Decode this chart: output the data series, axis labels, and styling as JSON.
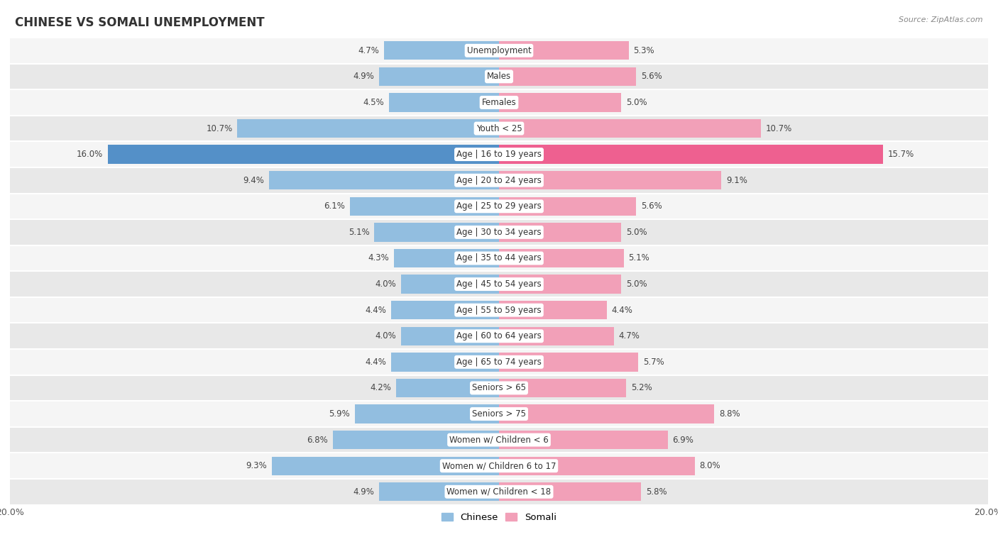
{
  "title": "CHINESE VS SOMALI UNEMPLOYMENT",
  "source": "Source: ZipAtlas.com",
  "categories": [
    "Unemployment",
    "Males",
    "Females",
    "Youth < 25",
    "Age | 16 to 19 years",
    "Age | 20 to 24 years",
    "Age | 25 to 29 years",
    "Age | 30 to 34 years",
    "Age | 35 to 44 years",
    "Age | 45 to 54 years",
    "Age | 55 to 59 years",
    "Age | 60 to 64 years",
    "Age | 65 to 74 years",
    "Seniors > 65",
    "Seniors > 75",
    "Women w/ Children < 6",
    "Women w/ Children 6 to 17",
    "Women w/ Children < 18"
  ],
  "chinese": [
    4.7,
    4.9,
    4.5,
    10.7,
    16.0,
    9.4,
    6.1,
    5.1,
    4.3,
    4.0,
    4.4,
    4.0,
    4.4,
    4.2,
    5.9,
    6.8,
    9.3,
    4.9
  ],
  "somali": [
    5.3,
    5.6,
    5.0,
    10.7,
    15.7,
    9.1,
    5.6,
    5.0,
    5.1,
    5.0,
    4.4,
    4.7,
    5.7,
    5.2,
    8.8,
    6.9,
    8.0,
    5.8
  ],
  "chinese_color": "#92BEE0",
  "somali_color": "#F2A0B8",
  "chinese_highlight": "#5490C8",
  "somali_highlight": "#EE6090",
  "background_color": "#FFFFFF",
  "row_bg_even": "#F5F5F5",
  "row_bg_odd": "#E8E8E8",
  "xlim": 20.0,
  "bar_height": 0.72,
  "legend_chinese": "Chinese",
  "legend_somali": "Somali",
  "title_fontsize": 12,
  "label_fontsize": 8.5,
  "value_fontsize": 8.5
}
